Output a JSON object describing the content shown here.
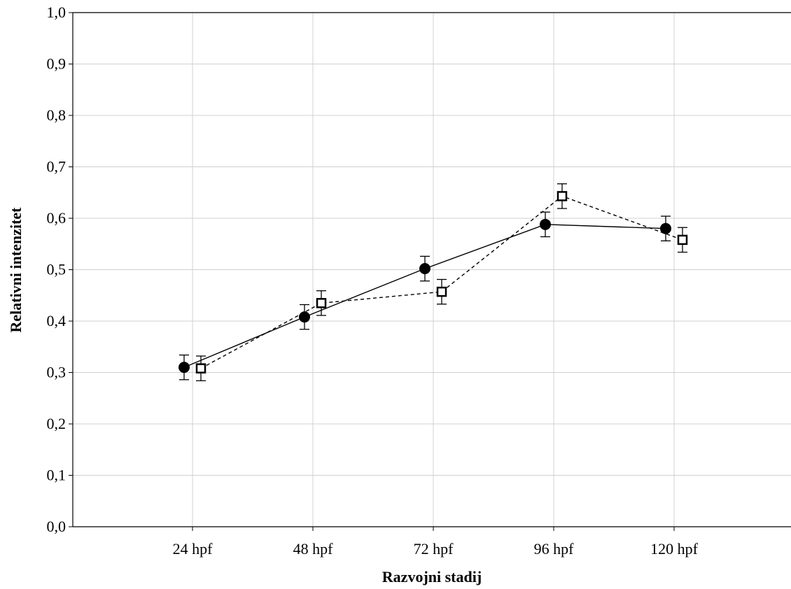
{
  "chart_data": {
    "type": "line",
    "title": "",
    "xlabel": "Razvojni stadij",
    "ylabel": "Relativni intenzitet",
    "categories": [
      "24 hpf",
      "48 hpf",
      "72 hpf",
      "96 hpf",
      "120 hpf"
    ],
    "ylim": [
      0,
      1
    ],
    "yticks": [
      "0,0",
      "0,1",
      "0,2",
      "0,3",
      "0,4",
      "0,5",
      "0,6",
      "0,7",
      "0,8",
      "0,9",
      "1,0"
    ],
    "grid": true,
    "series": [
      {
        "marker": "filled-circle",
        "line_style": "solid",
        "values": [
          0.31,
          0.408,
          0.502,
          0.588,
          0.58
        ],
        "errors": [
          0.024,
          0.024,
          0.024,
          0.024,
          0.024
        ]
      },
      {
        "marker": "open-square",
        "line_style": "dashed",
        "values": [
          0.308,
          0.435,
          0.457,
          0.643,
          0.558
        ],
        "errors": [
          0.024,
          0.024,
          0.024,
          0.024,
          0.024
        ]
      }
    ],
    "colors": {
      "line": "#000000",
      "grid": "#d0d0d0",
      "background": "#ffffff"
    }
  }
}
